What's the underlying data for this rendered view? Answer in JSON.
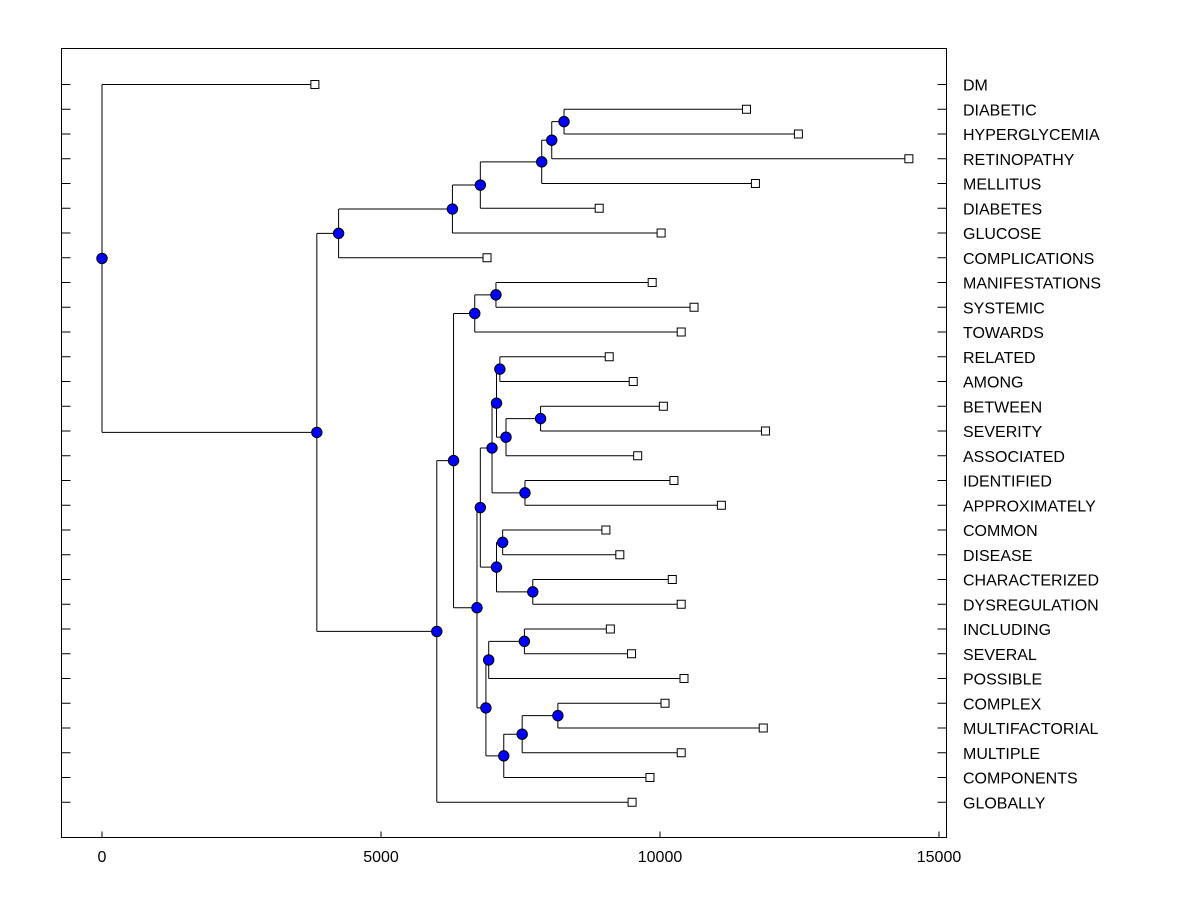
{
  "chart_data": {
    "type": "dendrogram",
    "title": "",
    "xlabel": "",
    "ylabel": "",
    "xlim": [
      -750,
      15000
    ],
    "x_ticks": [
      0,
      5000,
      10000,
      15000
    ],
    "leaves": [
      {
        "label": "DM",
        "x": 3815
      },
      {
        "label": "DIABETIC",
        "x": 11550
      },
      {
        "label": "HYPERGLYCEMIA",
        "x": 12480
      },
      {
        "label": "RETINOPATHY",
        "x": 14460
      },
      {
        "label": "MELLITUS",
        "x": 11710
      },
      {
        "label": "DIABETES",
        "x": 8910
      },
      {
        "label": "GLUCOSE",
        "x": 10020
      },
      {
        "label": "COMPLICATIONS",
        "x": 6900
      },
      {
        "label": "MANIFESTATIONS",
        "x": 9860
      },
      {
        "label": "SYSTEMIC",
        "x": 10610
      },
      {
        "label": "TOWARDS",
        "x": 10380
      },
      {
        "label": "RELATED",
        "x": 9090
      },
      {
        "label": "AMONG",
        "x": 9520
      },
      {
        "label": "BETWEEN",
        "x": 10060
      },
      {
        "label": "SEVERITY",
        "x": 11890
      },
      {
        "label": "ASSOCIATED",
        "x": 9600
      },
      {
        "label": "IDENTIFIED",
        "x": 10250
      },
      {
        "label": "APPROXIMATELY",
        "x": 11100
      },
      {
        "label": "COMMON",
        "x": 9030
      },
      {
        "label": "DISEASE",
        "x": 9280
      },
      {
        "label": "CHARACTERIZED",
        "x": 10220
      },
      {
        "label": "DYSREGULATION",
        "x": 10380
      },
      {
        "label": "INCLUDING",
        "x": 9110
      },
      {
        "label": "SEVERAL",
        "x": 9490
      },
      {
        "label": "POSSIBLE",
        "x": 10430
      },
      {
        "label": "COMPLEX",
        "x": 10090
      },
      {
        "label": "MULTIFACTORIAL",
        "x": 11850
      },
      {
        "label": "MULTIPLE",
        "x": 10380
      },
      {
        "label": "COMPONENTS",
        "x": 9820
      },
      {
        "label": "GLOBALLY",
        "x": 9500
      }
    ],
    "nodes": [
      {
        "id": "n1",
        "x": 8280,
        "children": [
          "L1",
          "L2"
        ]
      },
      {
        "id": "n2",
        "x": 8060,
        "children": [
          "n1",
          "L3"
        ]
      },
      {
        "id": "n3",
        "x": 7880,
        "children": [
          "n2",
          "L4"
        ]
      },
      {
        "id": "n4",
        "x": 6780,
        "children": [
          "n3",
          "L5"
        ]
      },
      {
        "id": "n5",
        "x": 6280,
        "children": [
          "n4",
          "L6"
        ]
      },
      {
        "id": "n6",
        "x": 4240,
        "children": [
          "n5",
          "L7"
        ]
      },
      {
        "id": "n7",
        "x": 7060,
        "children": [
          "L8",
          "L9"
        ]
      },
      {
        "id": "n8",
        "x": 6680,
        "children": [
          "n7",
          "L10"
        ]
      },
      {
        "id": "n9",
        "x": 7130,
        "children": [
          "L11",
          "L12"
        ]
      },
      {
        "id": "n10",
        "x": 7860,
        "children": [
          "L13",
          "L14"
        ]
      },
      {
        "id": "n11",
        "x": 7240,
        "children": [
          "n10",
          "L15"
        ]
      },
      {
        "id": "n12",
        "x": 7070,
        "children": [
          "n9",
          "n11"
        ]
      },
      {
        "id": "n13",
        "x": 7580,
        "children": [
          "L16",
          "L17"
        ]
      },
      {
        "id": "n14",
        "x": 6990,
        "children": [
          "n12",
          "n13"
        ]
      },
      {
        "id": "n15",
        "x": 7180,
        "children": [
          "L18",
          "L19"
        ]
      },
      {
        "id": "n16",
        "x": 7720,
        "children": [
          "L20",
          "L21"
        ]
      },
      {
        "id": "n17",
        "x": 7070,
        "children": [
          "n15",
          "n16"
        ]
      },
      {
        "id": "n18",
        "x": 6780,
        "children": [
          "n14",
          "n17"
        ]
      },
      {
        "id": "n19",
        "x": 7570,
        "children": [
          "L22",
          "L23"
        ]
      },
      {
        "id": "n20",
        "x": 6930,
        "children": [
          "n19",
          "L24"
        ]
      },
      {
        "id": "n21",
        "x": 8170,
        "children": [
          "L25",
          "L26"
        ]
      },
      {
        "id": "n22",
        "x": 7530,
        "children": [
          "n21",
          "L27"
        ]
      },
      {
        "id": "n23",
        "x": 7200,
        "children": [
          "n22",
          "L28"
        ]
      },
      {
        "id": "n24",
        "x": 6880,
        "children": [
          "n20",
          "n23"
        ]
      },
      {
        "id": "n25",
        "x": 6720,
        "children": [
          "n18",
          "n24"
        ]
      },
      {
        "id": "n26",
        "x": 6300,
        "children": [
          "n8",
          "n25"
        ]
      },
      {
        "id": "n27",
        "x": 6000,
        "children": [
          "n26",
          "L29"
        ]
      },
      {
        "id": "n28",
        "x": 3850,
        "children": [
          "n6",
          "n27"
        ]
      },
      {
        "id": "n29",
        "x": 0,
        "children": [
          "L0",
          "n28"
        ]
      }
    ],
    "root": "n29",
    "colors": {
      "node_fill": "#0000ff",
      "node_stroke": "#000000",
      "line": "#000000",
      "leaf_fill": "#ffffff"
    }
  }
}
